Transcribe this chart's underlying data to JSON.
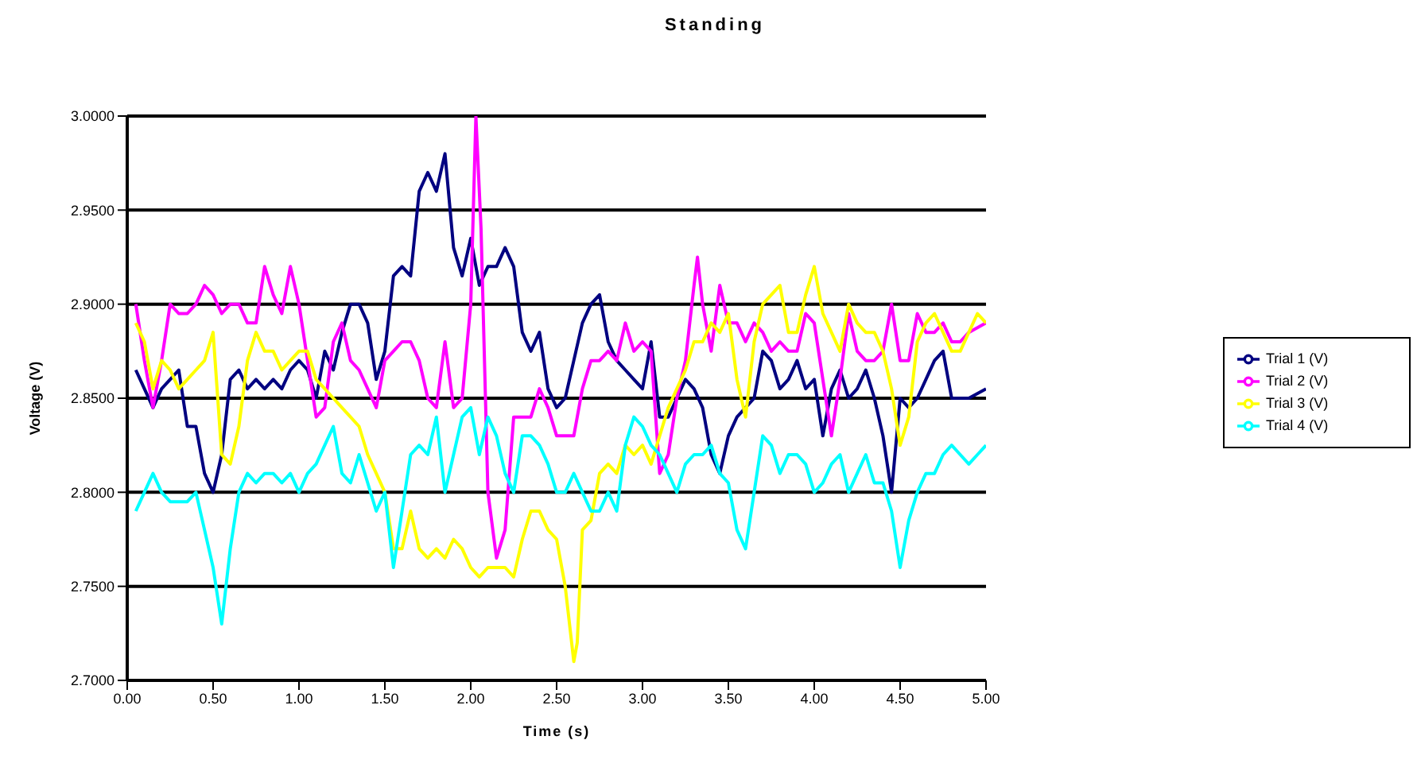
{
  "chart_data": {
    "type": "line",
    "title": "Standing",
    "xlabel": "Time (s)",
    "ylabel": "Voltage (V)",
    "xlim": [
      0,
      5
    ],
    "xticks": [
      {
        "value": 0,
        "label": "0.00"
      },
      {
        "value": 0.5,
        "label": "0.50"
      },
      {
        "value": 1,
        "label": "1.00"
      },
      {
        "value": 1.5,
        "label": "1.50"
      },
      {
        "value": 2,
        "label": "2.00"
      },
      {
        "value": 2.5,
        "label": "2.50"
      },
      {
        "value": 3,
        "label": "3.00"
      },
      {
        "value": 3.5,
        "label": "3.50"
      },
      {
        "value": 4,
        "label": "4.00"
      },
      {
        "value": 4.5,
        "label": "4.50"
      },
      {
        "value": 5,
        "label": "5.00"
      }
    ],
    "ylim": [
      2.7,
      3
    ],
    "yticks": [
      {
        "value": 2.7,
        "label": "2.7000"
      },
      {
        "value": 2.75,
        "label": "2.7500"
      },
      {
        "value": 2.8,
        "label": "2.8000"
      },
      {
        "value": 2.85,
        "label": "2.8500"
      },
      {
        "value": 2.9,
        "label": "2.9000"
      },
      {
        "value": 2.95,
        "label": "2.9500"
      },
      {
        "value": 3,
        "label": "3.0000"
      }
    ],
    "grid": "y",
    "legend": "right",
    "marker": "none",
    "line_style": "solid",
    "series": [
      {
        "name": "Trial 1 (V)",
        "color": "#000080",
        "x": [
          0.05,
          0.1,
          0.15,
          0.2,
          0.25,
          0.3,
          0.35,
          0.4,
          0.45,
          0.5,
          0.55,
          0.6,
          0.65,
          0.7,
          0.75,
          0.8,
          0.85,
          0.9,
          0.95,
          1,
          1.05,
          1.1,
          1.15,
          1.2,
          1.25,
          1.3,
          1.35,
          1.4,
          1.45,
          1.5,
          1.55,
          1.6,
          1.65,
          1.7,
          1.75,
          1.8,
          1.85,
          1.9,
          1.95,
          2,
          2.05,
          2.1,
          2.15,
          2.2,
          2.25,
          2.3,
          2.35,
          2.4,
          2.45,
          2.5,
          2.55,
          2.6,
          2.65,
          2.7,
          2.75,
          2.8,
          2.85,
          2.9,
          2.95,
          3,
          3.05,
          3.1,
          3.15,
          3.2,
          3.25,
          3.3,
          3.35,
          3.4,
          3.45,
          3.5,
          3.55,
          3.6,
          3.65,
          3.7,
          3.75,
          3.8,
          3.85,
          3.9,
          3.95,
          4,
          4.05,
          4.1,
          4.15,
          4.2,
          4.25,
          4.3,
          4.35,
          4.4,
          4.45,
          4.5,
          4.55,
          4.6,
          4.65,
          4.7,
          4.75,
          4.8,
          4.85,
          4.9,
          5
        ],
        "values": [
          2.865,
          2.855,
          2.845,
          2.855,
          2.86,
          2.865,
          2.835,
          2.835,
          2.81,
          2.8,
          2.82,
          2.86,
          2.865,
          2.855,
          2.86,
          2.855,
          2.86,
          2.855,
          2.865,
          2.87,
          2.865,
          2.85,
          2.875,
          2.865,
          2.885,
          2.9,
          2.9,
          2.89,
          2.86,
          2.875,
          2.915,
          2.92,
          2.915,
          2.96,
          2.97,
          2.96,
          2.98,
          2.93,
          2.915,
          2.935,
          2.91,
          2.92,
          2.92,
          2.93,
          2.92,
          2.885,
          2.875,
          2.885,
          2.855,
          2.845,
          2.85,
          2.87,
          2.89,
          2.9,
          2.905,
          2.88,
          2.87,
          2.865,
          2.86,
          2.855,
          2.88,
          2.84,
          2.84,
          2.85,
          2.86,
          2.855,
          2.845,
          2.82,
          2.81,
          2.83,
          2.84,
          2.845,
          2.85,
          2.875,
          2.87,
          2.855,
          2.86,
          2.87,
          2.855,
          2.86,
          2.83,
          2.855,
          2.865,
          2.85,
          2.855,
          2.865,
          2.85,
          2.83,
          2.8,
          2.85,
          2.845,
          2.85,
          2.86,
          2.87,
          2.875,
          2.85,
          2.85,
          2.85,
          2.855
        ]
      },
      {
        "name": "Trial 2 (V)",
        "color": "#ff00ff",
        "x": [
          0.05,
          0.1,
          0.15,
          0.2,
          0.25,
          0.3,
          0.35,
          0.4,
          0.45,
          0.5,
          0.55,
          0.6,
          0.65,
          0.7,
          0.75,
          0.8,
          0.85,
          0.9,
          0.95,
          1,
          1.05,
          1.1,
          1.15,
          1.2,
          1.25,
          1.3,
          1.35,
          1.4,
          1.45,
          1.5,
          1.55,
          1.6,
          1.65,
          1.7,
          1.75,
          1.8,
          1.85,
          1.9,
          1.95,
          2,
          2.03,
          2.06,
          2.1,
          2.15,
          2.2,
          2.25,
          2.3,
          2.35,
          2.4,
          2.45,
          2.5,
          2.55,
          2.6,
          2.65,
          2.7,
          2.75,
          2.8,
          2.85,
          2.9,
          2.95,
          3,
          3.05,
          3.1,
          3.15,
          3.2,
          3.25,
          3.3,
          3.32,
          3.35,
          3.4,
          3.45,
          3.5,
          3.55,
          3.6,
          3.65,
          3.7,
          3.75,
          3.8,
          3.85,
          3.9,
          3.95,
          4,
          4.05,
          4.1,
          4.15,
          4.2,
          4.25,
          4.3,
          4.35,
          4.4,
          4.45,
          4.5,
          4.55,
          4.6,
          4.65,
          4.7,
          4.75,
          4.8,
          4.85,
          4.9,
          5
        ],
        "values": [
          2.9,
          2.87,
          2.845,
          2.87,
          2.9,
          2.895,
          2.895,
          2.9,
          2.91,
          2.905,
          2.895,
          2.9,
          2.9,
          2.89,
          2.89,
          2.92,
          2.905,
          2.895,
          2.92,
          2.9,
          2.87,
          2.84,
          2.845,
          2.88,
          2.89,
          2.87,
          2.865,
          2.855,
          2.845,
          2.87,
          2.875,
          2.88,
          2.88,
          2.87,
          2.85,
          2.845,
          2.88,
          2.845,
          2.85,
          2.9,
          3,
          2.94,
          2.8,
          2.765,
          2.78,
          2.84,
          2.84,
          2.84,
          2.855,
          2.845,
          2.83,
          2.83,
          2.83,
          2.855,
          2.87,
          2.87,
          2.875,
          2.87,
          2.89,
          2.875,
          2.88,
          2.875,
          2.81,
          2.82,
          2.85,
          2.87,
          2.91,
          2.925,
          2.9,
          2.875,
          2.91,
          2.89,
          2.89,
          2.88,
          2.89,
          2.885,
          2.875,
          2.88,
          2.875,
          2.875,
          2.895,
          2.89,
          2.86,
          2.83,
          2.86,
          2.895,
          2.875,
          2.87,
          2.87,
          2.875,
          2.9,
          2.87,
          2.87,
          2.895,
          2.885,
          2.885,
          2.89,
          2.88,
          2.88,
          2.885,
          2.89
        ]
      },
      {
        "name": "Trial 3 (V)",
        "color": "#ffff00",
        "x": [
          0.05,
          0.1,
          0.15,
          0.2,
          0.25,
          0.3,
          0.35,
          0.4,
          0.45,
          0.5,
          0.55,
          0.6,
          0.65,
          0.7,
          0.75,
          0.8,
          0.85,
          0.9,
          0.95,
          1,
          1.05,
          1.1,
          1.15,
          1.2,
          1.25,
          1.3,
          1.35,
          1.4,
          1.45,
          1.5,
          1.55,
          1.6,
          1.65,
          1.7,
          1.75,
          1.8,
          1.85,
          1.9,
          1.95,
          2,
          2.05,
          2.1,
          2.15,
          2.2,
          2.25,
          2.3,
          2.35,
          2.4,
          2.45,
          2.5,
          2.55,
          2.6,
          2.62,
          2.65,
          2.7,
          2.75,
          2.8,
          2.85,
          2.9,
          2.95,
          3,
          3.05,
          3.1,
          3.15,
          3.2,
          3.25,
          3.3,
          3.35,
          3.4,
          3.45,
          3.5,
          3.55,
          3.6,
          3.65,
          3.7,
          3.75,
          3.8,
          3.85,
          3.9,
          3.95,
          4,
          4.05,
          4.1,
          4.15,
          4.2,
          4.25,
          4.3,
          4.35,
          4.4,
          4.45,
          4.5,
          4.55,
          4.6,
          4.65,
          4.7,
          4.75,
          4.8,
          4.85,
          4.9,
          4.95,
          5
        ],
        "values": [
          2.89,
          2.88,
          2.855,
          2.87,
          2.865,
          2.855,
          2.86,
          2.865,
          2.87,
          2.885,
          2.82,
          2.815,
          2.835,
          2.87,
          2.885,
          2.875,
          2.875,
          2.865,
          2.87,
          2.875,
          2.875,
          2.86,
          2.855,
          2.85,
          2.845,
          2.84,
          2.835,
          2.82,
          2.81,
          2.8,
          2.77,
          2.77,
          2.79,
          2.77,
          2.765,
          2.77,
          2.765,
          2.775,
          2.77,
          2.76,
          2.755,
          2.76,
          2.76,
          2.76,
          2.755,
          2.775,
          2.79,
          2.79,
          2.78,
          2.775,
          2.75,
          2.71,
          2.72,
          2.78,
          2.785,
          2.81,
          2.815,
          2.81,
          2.825,
          2.82,
          2.825,
          2.815,
          2.83,
          2.845,
          2.855,
          2.865,
          2.88,
          2.88,
          2.89,
          2.885,
          2.895,
          2.86,
          2.84,
          2.88,
          2.9,
          2.905,
          2.91,
          2.885,
          2.885,
          2.905,
          2.92,
          2.895,
          2.885,
          2.875,
          2.9,
          2.89,
          2.885,
          2.885,
          2.875,
          2.855,
          2.825,
          2.84,
          2.88,
          2.89,
          2.895,
          2.885,
          2.875,
          2.875,
          2.885,
          2.895,
          2.89
        ]
      },
      {
        "name": "Trial 4 (V)",
        "color": "#00ffff",
        "x": [
          0.05,
          0.1,
          0.15,
          0.2,
          0.25,
          0.3,
          0.35,
          0.4,
          0.45,
          0.5,
          0.55,
          0.6,
          0.65,
          0.7,
          0.75,
          0.8,
          0.85,
          0.9,
          0.95,
          1,
          1.05,
          1.1,
          1.15,
          1.2,
          1.25,
          1.3,
          1.35,
          1.4,
          1.45,
          1.5,
          1.55,
          1.6,
          1.65,
          1.7,
          1.75,
          1.8,
          1.85,
          1.9,
          1.95,
          2,
          2.05,
          2.1,
          2.15,
          2.2,
          2.25,
          2.3,
          2.35,
          2.4,
          2.45,
          2.5,
          2.55,
          2.6,
          2.65,
          2.7,
          2.75,
          2.8,
          2.85,
          2.9,
          2.95,
          3,
          3.05,
          3.1,
          3.15,
          3.2,
          3.25,
          3.3,
          3.35,
          3.4,
          3.45,
          3.5,
          3.55,
          3.6,
          3.65,
          3.7,
          3.75,
          3.8,
          3.85,
          3.9,
          3.95,
          4,
          4.05,
          4.1,
          4.15,
          4.2,
          4.25,
          4.3,
          4.35,
          4.4,
          4.45,
          4.5,
          4.55,
          4.6,
          4.65,
          4.7,
          4.75,
          4.8,
          4.85,
          4.9,
          4.95,
          5
        ],
        "values": [
          2.79,
          2.8,
          2.81,
          2.8,
          2.795,
          2.795,
          2.795,
          2.8,
          2.78,
          2.76,
          2.73,
          2.77,
          2.8,
          2.81,
          2.805,
          2.81,
          2.81,
          2.805,
          2.81,
          2.8,
          2.81,
          2.815,
          2.825,
          2.835,
          2.81,
          2.805,
          2.82,
          2.805,
          2.79,
          2.8,
          2.76,
          2.79,
          2.82,
          2.825,
          2.82,
          2.84,
          2.8,
          2.82,
          2.84,
          2.845,
          2.82,
          2.84,
          2.83,
          2.81,
          2.8,
          2.83,
          2.83,
          2.825,
          2.815,
          2.8,
          2.8,
          2.81,
          2.8,
          2.79,
          2.79,
          2.8,
          2.79,
          2.825,
          2.84,
          2.835,
          2.825,
          2.82,
          2.81,
          2.8,
          2.815,
          2.82,
          2.82,
          2.825,
          2.81,
          2.805,
          2.78,
          2.77,
          2.8,
          2.83,
          2.825,
          2.81,
          2.82,
          2.82,
          2.815,
          2.8,
          2.805,
          2.815,
          2.82,
          2.8,
          2.81,
          2.82,
          2.805,
          2.805,
          2.79,
          2.76,
          2.785,
          2.8,
          2.81,
          2.81,
          2.82,
          2.825,
          2.82,
          2.815,
          2.82,
          2.825
        ]
      }
    ]
  }
}
